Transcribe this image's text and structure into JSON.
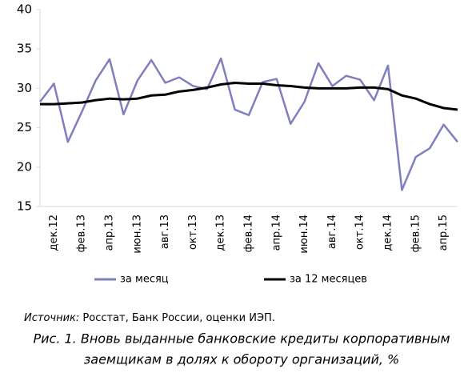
{
  "chart_data": {
    "type": "line",
    "categories": [
      null,
      "дек.12",
      null,
      "фев.13",
      null,
      "апр.13",
      null,
      "июн.13",
      null,
      "авг.13",
      null,
      "окт.13",
      null,
      "дек.13",
      null,
      "фев.14",
      null,
      "апр.14",
      null,
      "июн.14",
      null,
      "авг.14",
      null,
      "окт.14",
      null,
      "дек.14",
      null,
      "фев.15",
      null,
      "апр.15",
      null
    ],
    "series": [
      {
        "name": "за месяц",
        "color": "#7f7fbf",
        "values": [
          28.3,
          30.6,
          23.2,
          27,
          31,
          33.7,
          26.7,
          31,
          33.6,
          30.7,
          31.4,
          30.3,
          29.9,
          33.8,
          27.3,
          26.6,
          30.8,
          31.2,
          25.5,
          28.3,
          33.2,
          30.3,
          31.6,
          31.1,
          28.5,
          32.9,
          17.1,
          21.3,
          22.4,
          25.4,
          23.2
        ]
      },
      {
        "name": "за 12 месяцев",
        "color": "#000000",
        "values": [
          28,
          28,
          28.1,
          28.2,
          28.5,
          28.7,
          28.6,
          28.7,
          29.1,
          29.2,
          29.6,
          29.8,
          30.1,
          30.5,
          30.7,
          30.6,
          30.6,
          30.4,
          30.3,
          30.1,
          30,
          30,
          30,
          30.1,
          30.1,
          29.9,
          29.1,
          28.7,
          28,
          27.5,
          27.3
        ]
      }
    ],
    "ylim": [
      15,
      40
    ],
    "yticks": [
      15,
      20,
      25,
      30,
      35,
      40
    ],
    "grid": false,
    "legend": "bottom",
    "source_label": "Источник:",
    "source_text": " Росстат, Банк России, оценки ИЭП.",
    "caption": [
      "Рис. 1. Вновь выданные банковские кредиты корпоративным",
      "заемщикам в долях к обороту организаций, %"
    ]
  }
}
